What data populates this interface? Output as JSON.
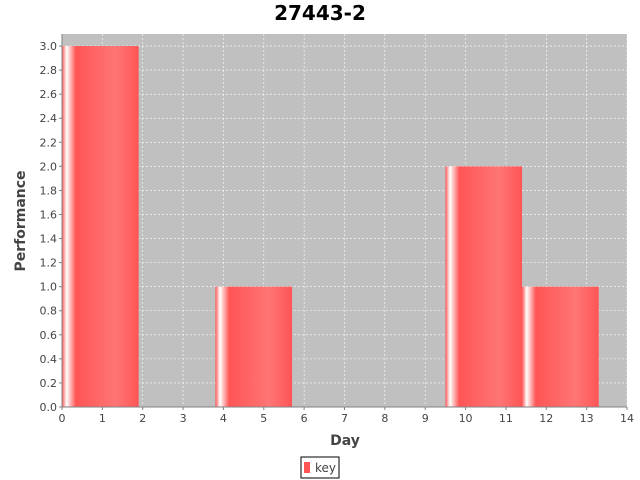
{
  "chart_data": {
    "type": "bar",
    "title": "27443-2",
    "xlabel": "Day",
    "ylabel": "Performance",
    "xlim": [
      0,
      14
    ],
    "ylim": [
      0,
      3.1
    ],
    "xticks": [
      "0",
      "1",
      "2",
      "3",
      "4",
      "5",
      "6",
      "7",
      "8",
      "9",
      "10",
      "11",
      "12",
      "13",
      "14"
    ],
    "yticks": [
      "0.0",
      "0.2",
      "0.4",
      "0.6",
      "0.8",
      "1.0",
      "1.2",
      "1.4",
      "1.6",
      "1.8",
      "2.0",
      "2.2",
      "2.4",
      "2.6",
      "2.8",
      "3.0"
    ],
    "grid": true,
    "legend_position": "bottom",
    "series": [
      {
        "name": "key",
        "color": "#ff5555",
        "bars": [
          {
            "x_start": 0.0,
            "x_end": 1.9,
            "value": 3.0
          },
          {
            "x_start": 3.8,
            "x_end": 5.7,
            "value": 1.0
          },
          {
            "x_start": 9.5,
            "x_end": 11.4,
            "value": 2.0
          },
          {
            "x_start": 11.4,
            "x_end": 13.3,
            "value": 1.0
          }
        ]
      }
    ]
  },
  "colors": {
    "plot_background": "#c0c0c0",
    "grid": "#ffffff",
    "bar": "#ff5555"
  }
}
